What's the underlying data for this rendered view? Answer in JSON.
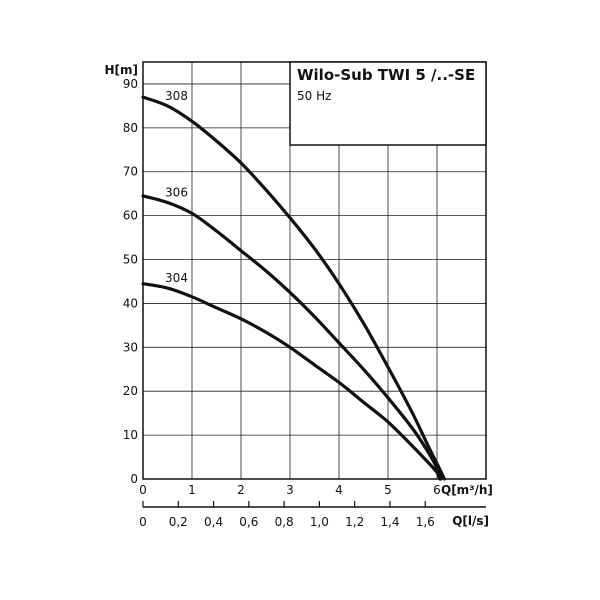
{
  "chart_data": {
    "type": "line",
    "title": "Wilo-Sub TWI 5 /..-SE",
    "subtitle": "50 Hz",
    "ylabel": "H[m]",
    "xlabel": "Q[m³/h]",
    "x2label": "Q[l/s]",
    "xlim": [
      0,
      7
    ],
    "ylim": [
      0,
      90
    ],
    "grid": true,
    "x_ticks": [
      "0",
      "1",
      "2",
      "3",
      "4",
      "5",
      "6"
    ],
    "y_ticks": [
      "0",
      "10",
      "20",
      "30",
      "40",
      "50",
      "60",
      "70",
      "80",
      "90"
    ],
    "x2_ticks": [
      {
        "value": 0,
        "label": "0"
      },
      {
        "value": 0.2,
        "label": "0,2"
      },
      {
        "value": 0.4,
        "label": "0,4"
      },
      {
        "value": 0.6,
        "label": "0,6"
      },
      {
        "value": 0.8,
        "label": "0,8"
      },
      {
        "value": 1.0,
        "label": "1,0"
      },
      {
        "value": 1.2,
        "label": "1,2"
      },
      {
        "value": 1.4,
        "label": "1,4"
      },
      {
        "value": 1.6,
        "label": "1,6"
      }
    ],
    "series": [
      {
        "name": "308",
        "points": [
          [
            0,
            87
          ],
          [
            0.5,
            85
          ],
          [
            1,
            81.5
          ],
          [
            1.5,
            77
          ],
          [
            2,
            72
          ],
          [
            2.5,
            66
          ],
          [
            3,
            59.5
          ],
          [
            3.5,
            52.5
          ],
          [
            4,
            44.5
          ],
          [
            4.5,
            35.5
          ],
          [
            5,
            25.5
          ],
          [
            5.5,
            15
          ],
          [
            5.8,
            8
          ],
          [
            6,
            3.5
          ],
          [
            6.15,
            0
          ]
        ]
      },
      {
        "name": "306",
        "points": [
          [
            0,
            64.5
          ],
          [
            0.5,
            63
          ],
          [
            1,
            60.5
          ],
          [
            1.5,
            56.5
          ],
          [
            2,
            52
          ],
          [
            2.5,
            47.5
          ],
          [
            3,
            42.5
          ],
          [
            3.5,
            37
          ],
          [
            4,
            31
          ],
          [
            4.5,
            25
          ],
          [
            5,
            18.5
          ],
          [
            5.5,
            11.5
          ],
          [
            5.8,
            6.5
          ],
          [
            6,
            2.5
          ],
          [
            6.08,
            0
          ]
        ]
      },
      {
        "name": "304",
        "points": [
          [
            0,
            44.5
          ],
          [
            0.5,
            43.5
          ],
          [
            1,
            41.5
          ],
          [
            1.5,
            39
          ],
          [
            2,
            36.5
          ],
          [
            2.5,
            33.5
          ],
          [
            3,
            30
          ],
          [
            3.5,
            26
          ],
          [
            4,
            22
          ],
          [
            4.5,
            17.5
          ],
          [
            5,
            13
          ],
          [
            5.5,
            7.5
          ],
          [
            5.8,
            4
          ],
          [
            6,
            1.5
          ],
          [
            6.06,
            0
          ]
        ]
      }
    ]
  }
}
